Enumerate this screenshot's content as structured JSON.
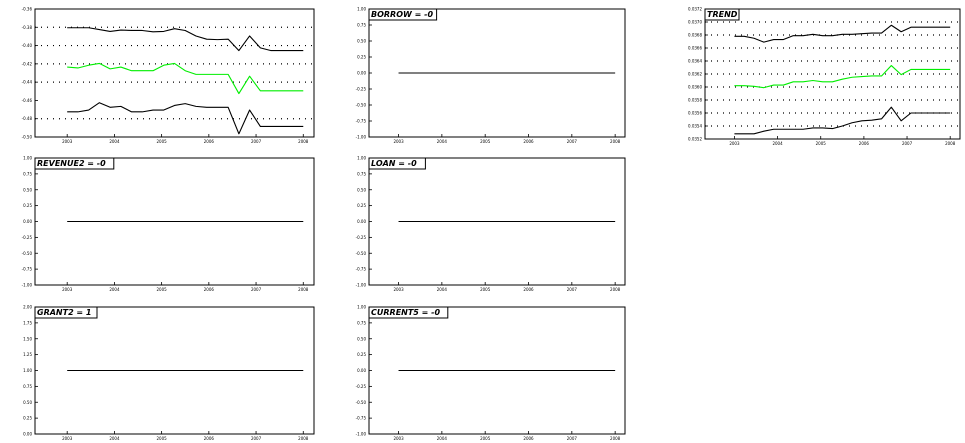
{
  "chart_data": [
    {
      "id": "p1",
      "type": "line",
      "title": "",
      "ylim": [
        -0.5,
        -0.36
      ],
      "yticks": [
        "-0.36",
        "-0.38",
        "-0.40",
        "-0.42",
        "-0.44",
        "-0.46",
        "-0.48",
        "-0.50"
      ],
      "yticks_at": [
        -0.36,
        -0.38,
        -0.4,
        -0.42,
        -0.44,
        -0.46,
        -0.48,
        -0.5
      ],
      "grid_dotted_at": [
        -0.38,
        -0.4,
        -0.42,
        -0.44,
        -0.48
      ],
      "xticks": [
        "2003",
        "2004",
        "2005",
        "2006",
        "2007",
        "2008"
      ],
      "x": [
        0.6,
        0.8,
        1.0,
        1.2,
        1.4,
        1.6,
        1.8,
        2.0,
        2.2,
        2.4,
        2.6,
        2.8,
        3.0,
        3.2,
        3.4,
        3.6,
        3.8,
        4.0,
        4.2,
        4.4,
        4.6,
        4.8,
        5.0
      ],
      "series": [
        {
          "color": "#000000",
          "values": [
            -0.3805,
            -0.3805,
            -0.3805,
            -0.3825,
            -0.3845,
            -0.383,
            -0.3835,
            -0.3835,
            -0.385,
            -0.3845,
            -0.3815,
            -0.3835,
            -0.3895,
            -0.393,
            -0.3935,
            -0.393,
            -0.4055,
            -0.3895,
            -0.4025,
            -0.4055,
            -0.4055,
            -0.4055,
            -0.4055
          ]
        },
        {
          "color": "#00ee00",
          "values": [
            -0.4235,
            -0.4245,
            -0.4215,
            -0.4195,
            -0.4255,
            -0.4235,
            -0.4275,
            -0.4275,
            -0.4275,
            -0.4215,
            -0.4195,
            -0.4275,
            -0.4315,
            -0.4315,
            -0.4315,
            -0.4315,
            -0.4525,
            -0.4335,
            -0.4495,
            -0.4495,
            -0.4495,
            -0.4495,
            -0.4495
          ]
        },
        {
          "color": "#000000",
          "values": [
            -0.4725,
            -0.4725,
            -0.4705,
            -0.4625,
            -0.4675,
            -0.4665,
            -0.4725,
            -0.4725,
            -0.4705,
            -0.4705,
            -0.4655,
            -0.4635,
            -0.4665,
            -0.4675,
            -0.4675,
            -0.4675,
            -0.4965,
            -0.4705,
            -0.4885,
            -0.4885,
            -0.4885,
            -0.4885,
            -0.4885
          ]
        }
      ]
    },
    {
      "id": "p2",
      "type": "line",
      "title": "BORROW = -0",
      "ylim": [
        -1,
        1
      ],
      "yticks": [
        "1.00",
        "0.75",
        "0.50",
        "0.25",
        "0.00",
        "-0.25",
        "-0.50",
        "-0.75",
        "-1.00"
      ],
      "yticks_at": [
        1,
        0.75,
        0.5,
        0.25,
        0,
        -0.25,
        -0.5,
        -0.75,
        -1
      ],
      "xticks": [
        "2003",
        "2004",
        "2005",
        "2006",
        "2007",
        "2008"
      ],
      "x": [
        0.6,
        5.0
      ],
      "series": [
        {
          "color": "#000000",
          "values": [
            0,
            0
          ]
        }
      ]
    },
    {
      "id": "p3",
      "type": "line",
      "title": "TREND",
      "ylim": [
        0.0352,
        0.0372
      ],
      "yticks": [
        "0.0372",
        "0.0370",
        "0.0368",
        "0.0366",
        "0.0364",
        "0.0362",
        "0.0360",
        "0.0358",
        "0.0356",
        "0.0354",
        "0.0352"
      ],
      "yticks_at": [
        0.0372,
        0.037,
        0.0368,
        0.0366,
        0.0364,
        0.0362,
        0.036,
        0.0358,
        0.0356,
        0.0354,
        0.0352
      ],
      "grid_dotted_at": [
        0.037,
        0.0368,
        0.0366,
        0.0364,
        0.0362,
        0.036,
        0.0358,
        0.0356,
        0.0354
      ],
      "xticks": [
        "2003",
        "2004",
        "2005",
        "2006",
        "2007",
        "2008"
      ],
      "x": [
        0.6,
        0.8,
        1.0,
        1.2,
        1.4,
        1.6,
        1.8,
        2.0,
        2.2,
        2.4,
        2.6,
        2.8,
        3.0,
        3.2,
        3.4,
        3.6,
        3.8,
        4.0,
        4.2,
        4.4,
        4.6,
        4.8,
        5.0
      ],
      "series": [
        {
          "color": "#000000",
          "values": [
            0.03678,
            0.03678,
            0.03675,
            0.03669,
            0.03673,
            0.03673,
            0.03679,
            0.03679,
            0.03681,
            0.03679,
            0.03679,
            0.03681,
            0.03681,
            0.03682,
            0.03683,
            0.03683,
            0.03695,
            0.03685,
            0.03692,
            0.03692,
            0.03692,
            0.03692,
            0.03692
          ]
        },
        {
          "color": "#00ee00",
          "values": [
            0.03602,
            0.03602,
            0.03601,
            0.03599,
            0.03603,
            0.03603,
            0.03608,
            0.03608,
            0.0361,
            0.03608,
            0.03608,
            0.03612,
            0.03615,
            0.03616,
            0.03617,
            0.03617,
            0.03633,
            0.03619,
            0.03627,
            0.03627,
            0.03627,
            0.03627,
            0.03627
          ]
        },
        {
          "color": "#000000",
          "values": [
            0.03528,
            0.03528,
            0.03528,
            0.03532,
            0.03535,
            0.03535,
            0.03535,
            0.03535,
            0.03537,
            0.03537,
            0.03536,
            0.0354,
            0.03545,
            0.03548,
            0.03549,
            0.03551,
            0.03569,
            0.03548,
            0.0356,
            0.0356,
            0.0356,
            0.0356,
            0.0356
          ]
        }
      ]
    },
    {
      "id": "p4",
      "type": "line",
      "title": "REVENUE2 = -0",
      "ylim": [
        -1,
        1
      ],
      "yticks": [
        "1.00",
        "0.75",
        "0.50",
        "0.25",
        "0.00",
        "-0.25",
        "-0.50",
        "-0.75",
        "-1.00"
      ],
      "yticks_at": [
        1,
        0.75,
        0.5,
        0.25,
        0,
        -0.25,
        -0.5,
        -0.75,
        -1
      ],
      "xticks": [
        "2003",
        "2004",
        "2005",
        "2006",
        "2007",
        "2008"
      ],
      "x": [
        0.6,
        5.0
      ],
      "series": [
        {
          "color": "#000000",
          "values": [
            0,
            0
          ]
        }
      ]
    },
    {
      "id": "p5",
      "type": "line",
      "title": "LOAN = -0",
      "ylim": [
        -1,
        1
      ],
      "yticks": [
        "1.00",
        "0.75",
        "0.50",
        "0.25",
        "0.00",
        "-0.25",
        "-0.50",
        "-0.75",
        "-1.00"
      ],
      "yticks_at": [
        1,
        0.75,
        0.5,
        0.25,
        0,
        -0.25,
        -0.5,
        -0.75,
        -1
      ],
      "xticks": [
        "2003",
        "2004",
        "2005",
        "2006",
        "2007",
        "2008"
      ],
      "x": [
        0.6,
        5.0
      ],
      "series": [
        {
          "color": "#000000",
          "values": [
            0,
            0
          ]
        }
      ]
    },
    {
      "id": "p6",
      "type": "line",
      "title": "GRANT2 = 1",
      "ylim": [
        0,
        2
      ],
      "yticks": [
        "2.00",
        "1.75",
        "1.50",
        "1.25",
        "1.00",
        "0.75",
        "0.50",
        "0.25",
        "0.00"
      ],
      "yticks_at": [
        2,
        1.75,
        1.5,
        1.25,
        1,
        0.75,
        0.5,
        0.25,
        0
      ],
      "xticks": [
        "2003",
        "2004",
        "2005",
        "2006",
        "2007",
        "2008"
      ],
      "x": [
        0.6,
        5.0
      ],
      "series": [
        {
          "color": "#000000",
          "values": [
            1,
            1
          ]
        }
      ]
    },
    {
      "id": "p7",
      "type": "line",
      "title": "CURRENT5 = -0",
      "ylim": [
        -1,
        1
      ],
      "yticks": [
        "1.00",
        "0.75",
        "0.50",
        "0.25",
        "0.00",
        "-0.25",
        "-0.50",
        "-0.75",
        "-1.00"
      ],
      "yticks_at": [
        1,
        0.75,
        0.5,
        0.25,
        0,
        -0.25,
        -0.5,
        -0.75,
        -1
      ],
      "xticks": [
        "2003",
        "2004",
        "2005",
        "2006",
        "2007",
        "2008"
      ],
      "x": [
        0.6,
        5.0
      ],
      "series": [
        {
          "color": "#000000",
          "values": [
            0,
            0
          ]
        }
      ]
    }
  ]
}
